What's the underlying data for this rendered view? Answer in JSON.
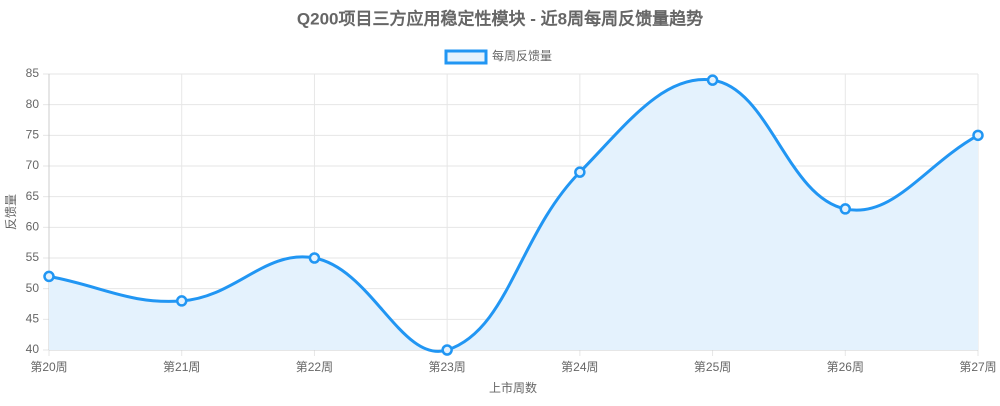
{
  "chart_data": {
    "type": "line",
    "title": "Q200项目三方应用稳定性模块 - 近8周每周反馈量趋势",
    "x_label": "上市周数",
    "y_label": "反馈量",
    "categories": [
      "第20周",
      "第21周",
      "第22周",
      "第23周",
      "第24周",
      "第25周",
      "第26周",
      "第27周"
    ],
    "series": [
      {
        "name": "每周反馈量",
        "color": "#2196f3",
        "fill_color": "#e4f2fd",
        "values": [
          52,
          48,
          55,
          40,
          69,
          84,
          63,
          75
        ]
      }
    ],
    "ylim": [
      40,
      85
    ],
    "yticks": [
      40,
      45,
      50,
      55,
      60,
      65,
      70,
      75,
      80,
      85
    ],
    "grid": true,
    "legend": "top",
    "fill": true,
    "smooth": true
  }
}
